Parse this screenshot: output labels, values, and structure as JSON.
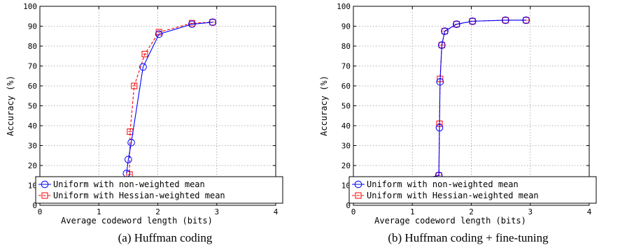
{
  "colors": {
    "series_nonweighted": "#0000ff",
    "series_hessian": "#ff0000",
    "axes": "#000000",
    "grid": "#9a9a9a"
  },
  "chart_data": [
    {
      "type": "line",
      "caption": "(a) Huffman coding",
      "xlabel": "Average codeword length (bits)",
      "ylabel": "Accuracy (%)",
      "xlim": [
        0,
        4
      ],
      "ylim": [
        0,
        100
      ],
      "xticks": [
        "0",
        "1",
        "2",
        "3",
        "4"
      ],
      "yticks": [
        "0",
        "10",
        "20",
        "30",
        "40",
        "50",
        "60",
        "70",
        "80",
        "90",
        "100"
      ],
      "grid": true,
      "legend_position": "bottom-left",
      "series": [
        {
          "name": "Uniform with non-weighted mean",
          "marker": "circle",
          "line": "solid",
          "x": [
            1.47,
            1.5,
            1.55,
            1.75,
            2.02,
            2.58,
            2.93
          ],
          "y": [
            16,
            23,
            31.5,
            69.5,
            86,
            91,
            92
          ]
        },
        {
          "name": "Uniform with Hessian-weighted mean",
          "marker": "square",
          "line": "dashed",
          "x": [
            1.49,
            1.52,
            1.53,
            1.6,
            1.78,
            2.02,
            2.58,
            2.93
          ],
          "y": [
            10,
            15.5,
            37,
            60,
            76,
            87,
            91.5,
            92
          ]
        }
      ]
    },
    {
      "type": "line",
      "caption": "(b) Huffman coding + fine-tuning",
      "xlabel": "Average codeword length (bits)",
      "ylabel": "Accuracy (%)",
      "xlim": [
        0,
        4
      ],
      "ylim": [
        0,
        100
      ],
      "xticks": [
        "0",
        "1",
        "2",
        "3",
        "4"
      ],
      "yticks": [
        "0",
        "10",
        "20",
        "30",
        "40",
        "50",
        "60",
        "70",
        "80",
        "90",
        "100"
      ],
      "grid": true,
      "legend_position": "bottom-left",
      "series": [
        {
          "name": "Uniform with non-weighted mean",
          "marker": "circle",
          "line": "solid",
          "x": [
            0.98,
            1.45,
            1.46,
            1.47,
            1.5,
            1.55,
            1.75,
            2.02,
            2.58,
            2.93
          ],
          "y": [
            12,
            15,
            39,
            62,
            80.5,
            87.5,
            91,
            92.5,
            93,
            93
          ]
        },
        {
          "name": "Uniform with Hessian-weighted mean",
          "marker": "square",
          "line": "dashed",
          "x": [
            0.98,
            1.45,
            1.46,
            1.47,
            1.5,
            1.55,
            1.75,
            2.02,
            2.58,
            2.93
          ],
          "y": [
            12,
            15,
            41,
            63.5,
            80.5,
            87.5,
            91,
            92.5,
            93,
            93
          ]
        }
      ]
    }
  ]
}
